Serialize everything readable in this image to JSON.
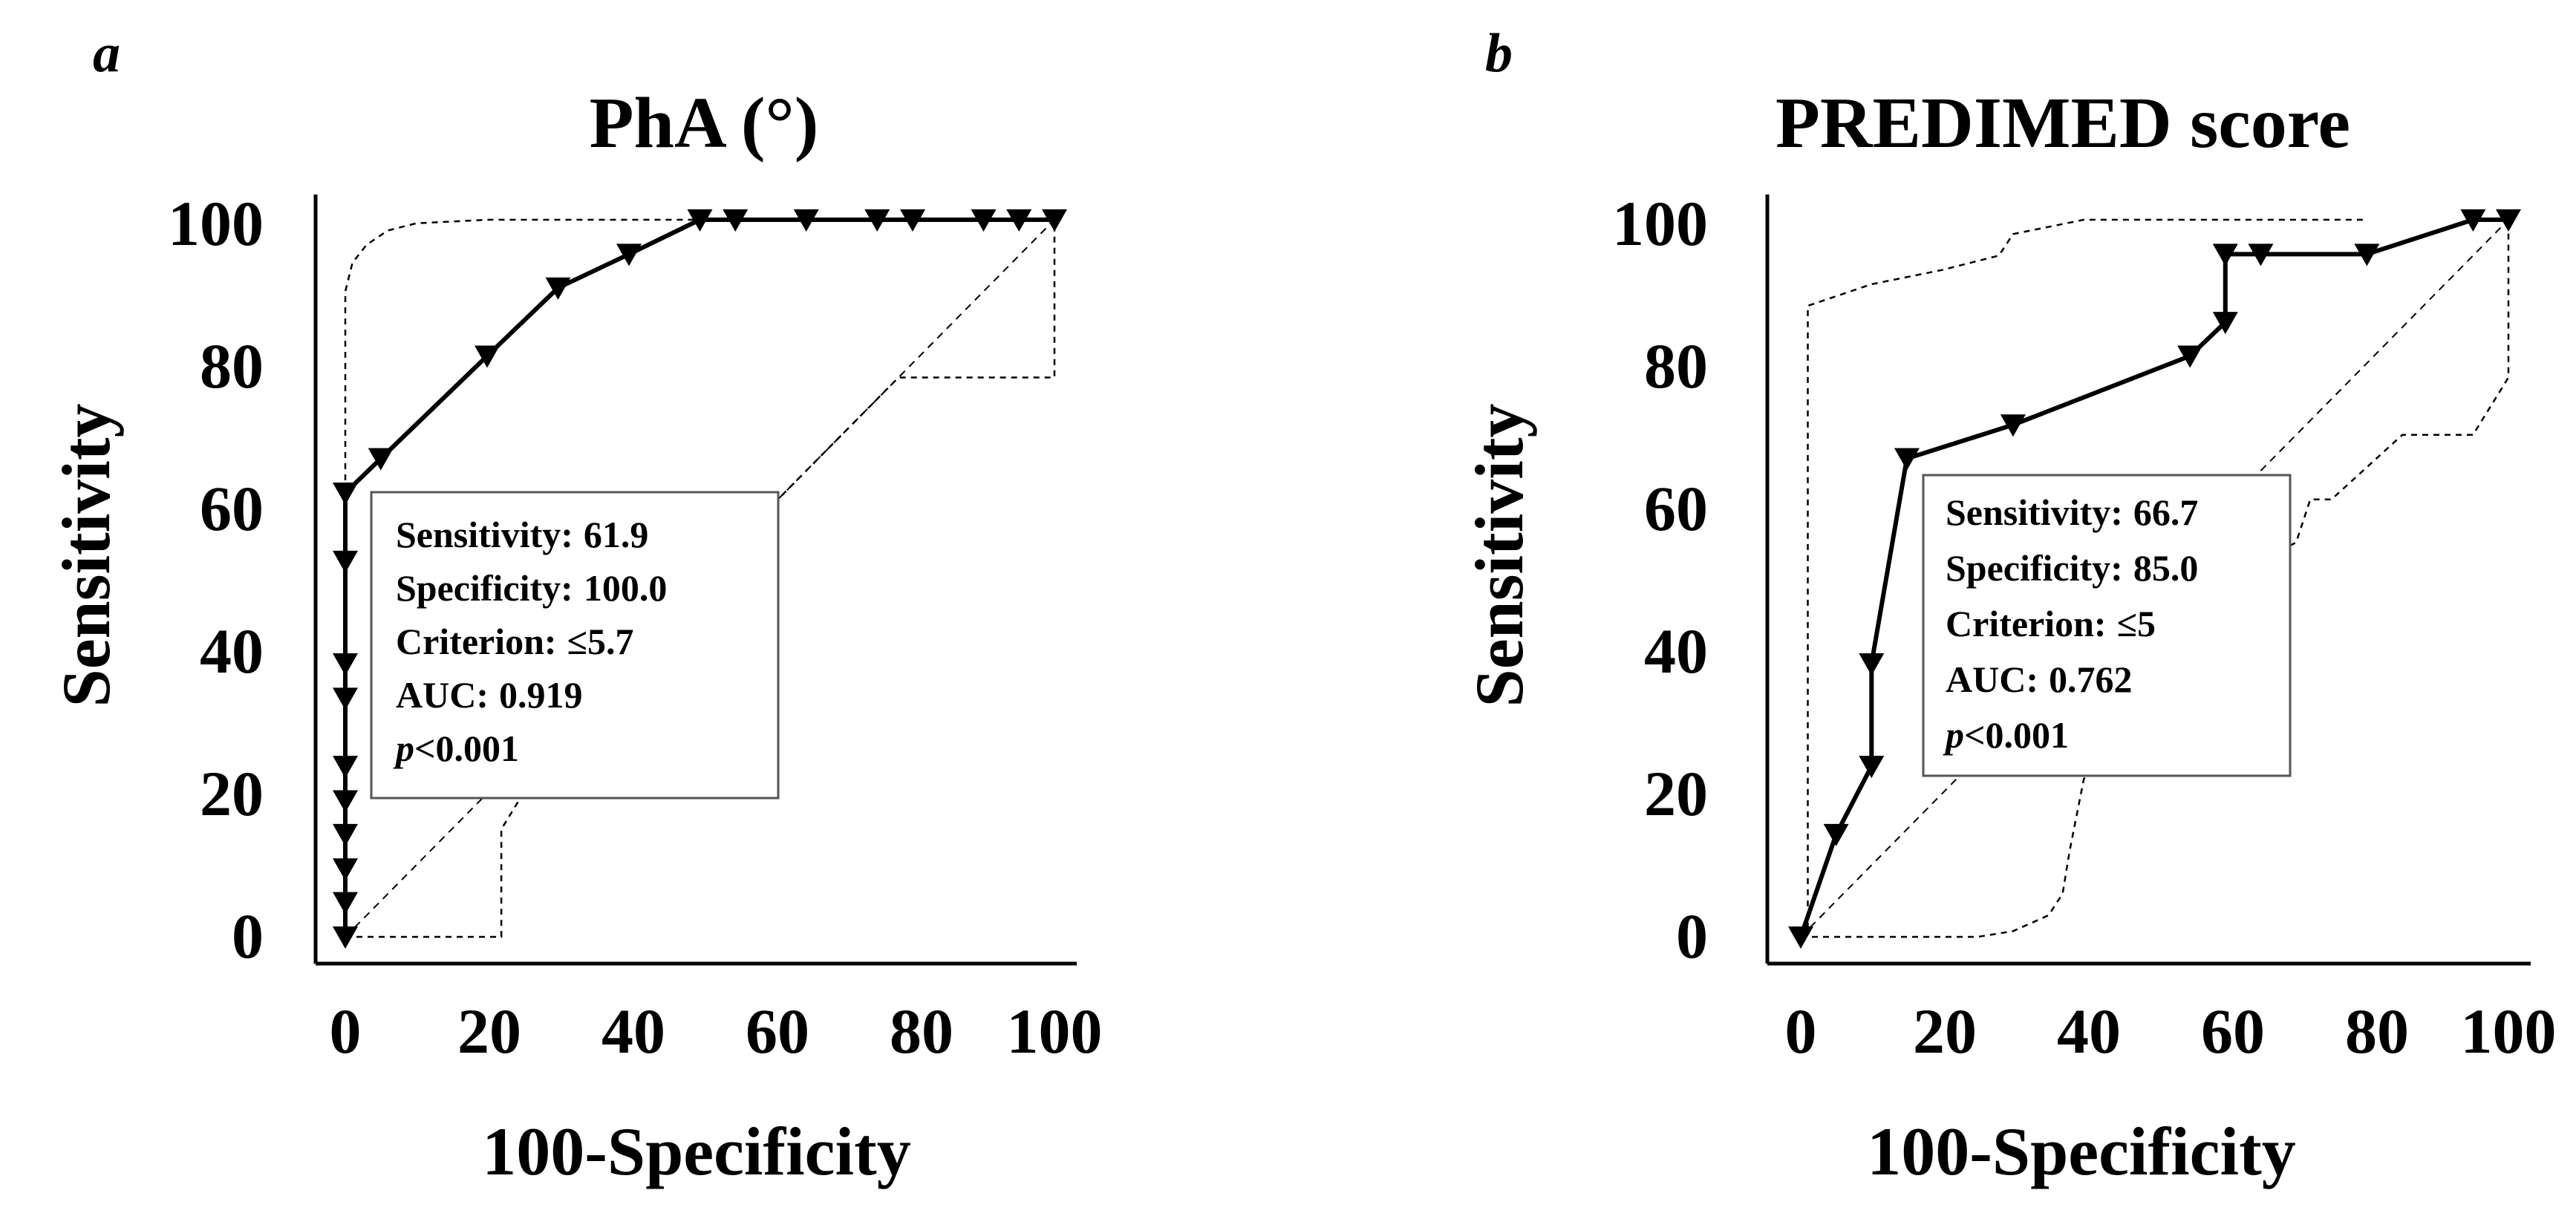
{
  "chart_data": [
    {
      "type": "line",
      "panel_letter": "a",
      "title": "PhA (°)",
      "xlabel": "100-Specificity",
      "ylabel": "Sensitivity",
      "xlim": [
        0,
        100
      ],
      "ylim": [
        0,
        100
      ],
      "xticks": [
        "0",
        "20",
        "40",
        "60",
        "80",
        "100"
      ],
      "yticks": [
        "0",
        "20",
        "40",
        "60",
        "80",
        "100"
      ],
      "roc": {
        "x": [
          0,
          0,
          0,
          0,
          0,
          0,
          0,
          0,
          0,
          0,
          0,
          5,
          20,
          30,
          40,
          50,
          55,
          65,
          75,
          80,
          90,
          95,
          100
        ],
        "y": [
          0,
          4.8,
          9.5,
          14.3,
          19,
          23.8,
          33.3,
          38.1,
          52.4,
          61.9,
          61.9,
          66.7,
          81,
          90.5,
          95.2,
          100,
          100,
          100,
          100,
          100,
          100,
          100,
          100
        ]
      },
      "ci_upper": {
        "x": [
          0,
          0,
          1,
          3,
          6,
          10,
          20,
          35,
          50,
          100
        ],
        "y": [
          0,
          90,
          94,
          96.5,
          98.5,
          99.5,
          100,
          100,
          100,
          100
        ]
      },
      "ci_lower": {
        "x": [
          0,
          22,
          22,
          22,
          30,
          45,
          60,
          78,
          100,
          100
        ],
        "y": [
          0,
          0,
          10,
          15,
          28,
          43,
          60,
          78,
          78,
          100
        ]
      },
      "reference_line": {
        "x": [
          0,
          100
        ],
        "y": [
          0,
          100
        ]
      },
      "stats_box": {
        "sensitivity_label": "Sensitivity:",
        "sensitivity_value": "61.9",
        "specificity_label": "Specificity:",
        "specificity_value": "100.0",
        "criterion_label": "Criterion:",
        "criterion_value": "≤5.7",
        "auc_label": "AUC:",
        "auc_value": "0.919",
        "p_label": "p",
        "p_value": "<0.001"
      }
    },
    {
      "type": "line",
      "panel_letter": "b",
      "title": "PREDIMED score",
      "xlabel": "100-Specificity",
      "ylabel": "Sensitivity",
      "xlim": [
        0,
        100
      ],
      "ylim": [
        0,
        100
      ],
      "xticks": [
        "0",
        "20",
        "40",
        "60",
        "80",
        "100"
      ],
      "yticks": [
        "0",
        "20",
        "40",
        "60",
        "80",
        "100"
      ],
      "roc": {
        "x": [
          0,
          5,
          10,
          10,
          15,
          30,
          55,
          60,
          60,
          65,
          80,
          95,
          100
        ],
        "y": [
          0,
          14.3,
          23.8,
          38.1,
          66.7,
          71.4,
          81,
          85.7,
          95.2,
          95.2,
          95.2,
          100,
          100
        ]
      },
      "ci_upper": {
        "x": [
          0,
          1,
          1,
          10,
          20,
          28,
          30,
          40,
          60,
          80
        ],
        "y": [
          0,
          1,
          88,
          91,
          93,
          95,
          98,
          100,
          100,
          100
        ]
      },
      "ci_lower": {
        "x": [
          0,
          15,
          25,
          30,
          35,
          37,
          38,
          40,
          55,
          60,
          70,
          72,
          75,
          85,
          95,
          100,
          100
        ],
        "y": [
          0,
          0,
          0,
          0.8,
          3,
          6,
          12,
          22,
          45,
          50,
          55,
          61,
          61,
          70,
          70,
          78,
          100
        ]
      },
      "reference_line": {
        "x": [
          0,
          100
        ],
        "y": [
          0,
          100
        ]
      },
      "stats_box": {
        "sensitivity_label": "Sensitivity:",
        "sensitivity_value": "66.7",
        "specificity_label": "Specificity:",
        "specificity_value": "85.0",
        "criterion_label": "Criterion:",
        "criterion_value": "≤5",
        "auc_label": "AUC:",
        "auc_value": "0.762",
        "p_label": "p",
        "p_value": "<0.001"
      }
    }
  ]
}
